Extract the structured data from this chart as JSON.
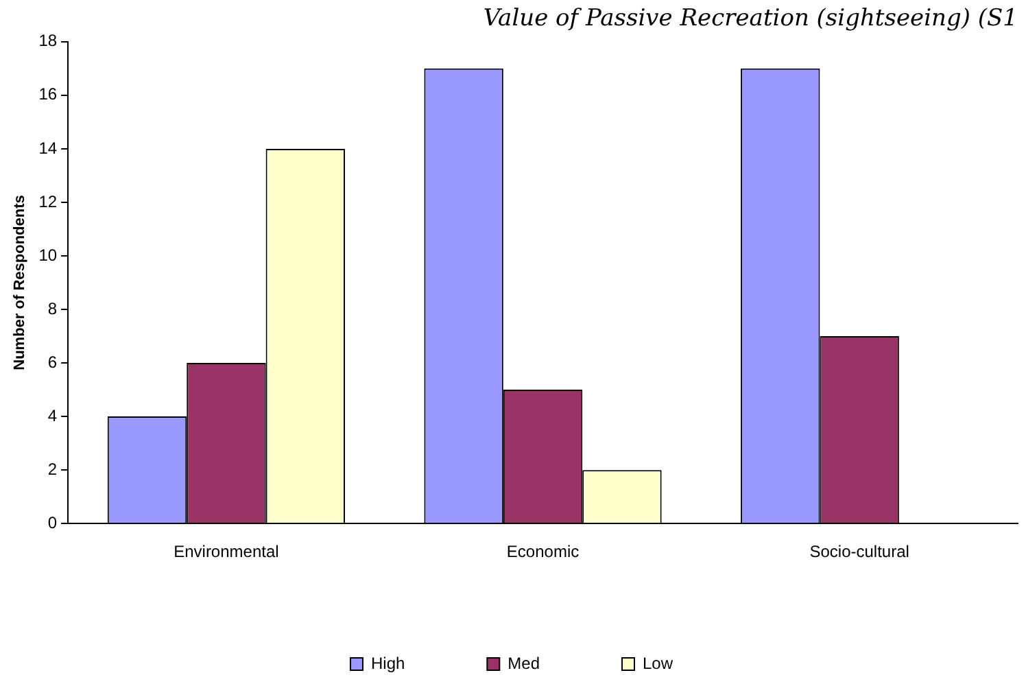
{
  "chart_data": {
    "type": "bar",
    "title": "Value of Passive Recreation (sightseeing) (S1",
    "ylabel": "Number of Respondents",
    "categories": [
      "Environmental",
      "Economic",
      "Socio-cultural"
    ],
    "series": [
      {
        "name": "High",
        "color": "#9999ff",
        "values": [
          4,
          17,
          17
        ]
      },
      {
        "name": "Med",
        "color": "#993366",
        "values": [
          6,
          5,
          7
        ]
      },
      {
        "name": "Low",
        "color": "#ffffcc",
        "values": [
          14,
          2,
          0
        ]
      }
    ],
    "ylim": [
      0,
      18
    ],
    "yticks": [
      0,
      2,
      4,
      6,
      8,
      10,
      12,
      14,
      16,
      18
    ],
    "grid": false,
    "legend": "bottom"
  }
}
